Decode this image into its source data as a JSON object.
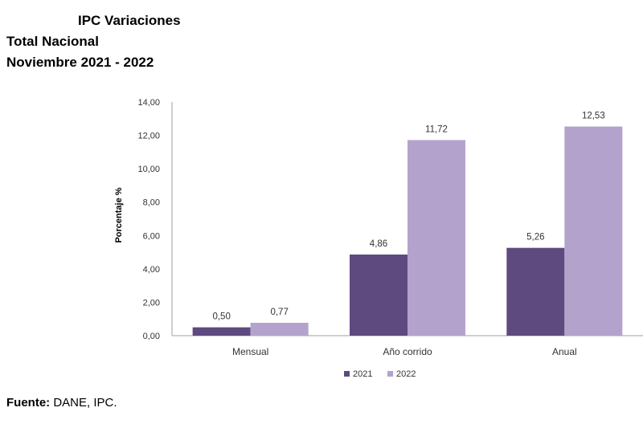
{
  "header": {
    "title": "IPC Variaciones",
    "subtitle1": "Total Nacional",
    "subtitle2": "Noviembre 2021 - 2022"
  },
  "source": {
    "label": "Fuente:",
    "text": " DANE, IPC."
  },
  "chart_data": {
    "type": "bar",
    "title": "IPC Variaciones",
    "xlabel": "",
    "ylabel": "Porcentaje %",
    "ylim": [
      0,
      14
    ],
    "yticks": [
      "0,00",
      "2,00",
      "4,00",
      "6,00",
      "8,00",
      "10,00",
      "12,00",
      "14,00"
    ],
    "categories": [
      "Mensual",
      "Año corrido",
      "Anual"
    ],
    "series": [
      {
        "name": "2021",
        "values": [
          0.5,
          4.86,
          5.26
        ],
        "labels": [
          "0,50",
          "4,86",
          "5,26"
        ],
        "color": "#5e4a7e"
      },
      {
        "name": "2022",
        "values": [
          0.77,
          11.72,
          12.53
        ],
        "labels": [
          "0,77",
          "11,72",
          "12,53"
        ],
        "color": "#b3a3cc"
      }
    ],
    "legend": "bottom-center",
    "grid": false
  }
}
